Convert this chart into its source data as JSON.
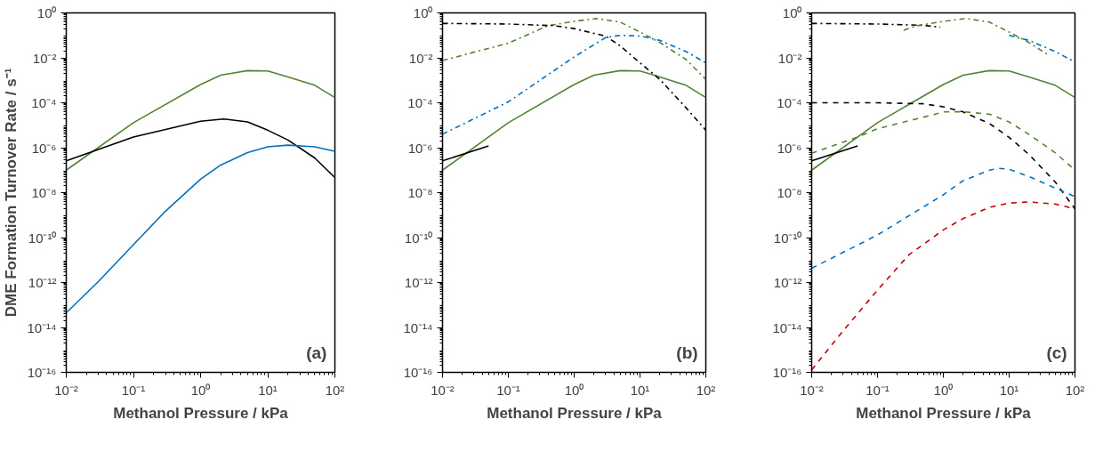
{
  "chart_data": [
    {
      "type": "line",
      "xlabel": "Methanol Pressure / kPa",
      "ylabel": "DME Formation Turnover Rate / s⁻¹",
      "annotations": [
        "(a)"
      ],
      "log": "xy",
      "grid": false,
      "xlim": [
        0.01,
        100
      ],
      "ylim": [
        1e-16,
        1
      ],
      "xticks": [
        {
          "value": 0.01,
          "label": "10⁻²"
        },
        {
          "value": 0.1,
          "label": "10⁻¹"
        },
        {
          "value": 1,
          "label": "10⁰"
        },
        {
          "value": 10,
          "label": "10¹"
        },
        {
          "value": 100,
          "label": "10²"
        }
      ],
      "yticks": [
        {
          "value": 1e-16,
          "label": "10⁻¹⁶"
        },
        {
          "value": 1e-14,
          "label": "10⁻¹⁴"
        },
        {
          "value": 1e-12,
          "label": "10⁻¹²"
        },
        {
          "value": 1e-10,
          "label": "10⁻¹⁰"
        },
        {
          "value": 1e-08,
          "label": "10⁻⁸"
        },
        {
          "value": 1e-06,
          "label": "10⁻⁶"
        },
        {
          "value": 0.0001,
          "label": "10⁻⁴"
        },
        {
          "value": 0.01,
          "label": "10⁻²"
        },
        {
          "value": 1,
          "label": "10⁰"
        }
      ],
      "series": [
        {
          "color": "#548235",
          "line_style": "solid",
          "x": [
            0.01,
            0.1,
            1,
            2,
            5,
            10,
            20,
            50,
            100
          ],
          "values": [
            1e-07,
            1.3e-05,
            0.00065,
            0.0017,
            0.0027,
            0.0026,
            0.0014,
            0.0006,
            0.00017
          ]
        },
        {
          "color": "#000000",
          "line_style": "solid",
          "x": [
            0.01,
            0.1,
            1,
            2.2,
            5,
            10,
            20,
            50,
            100
          ],
          "values": [
            2.6e-07,
            3e-06,
            1.5e-05,
            1.9e-05,
            1.4e-05,
            6e-06,
            2.2e-06,
            3.5e-07,
            4.7e-08
          ]
        },
        {
          "color": "#0070c0",
          "line_style": "solid",
          "x": [
            0.01,
            0.03,
            0.1,
            0.3,
            1,
            2,
            5,
            10,
            20,
            50,
            100
          ],
          "values": [
            4.5e-14,
            1.1e-12,
            4.8e-11,
            1.5e-09,
            4e-08,
            1.7e-07,
            6e-07,
            1.1e-06,
            1.3e-06,
            1.1e-06,
            7e-07
          ]
        }
      ]
    },
    {
      "type": "line",
      "xlabel": "Methanol Pressure / kPa",
      "annotations": [
        "(b)"
      ],
      "log": "xy",
      "grid": false,
      "xlim": [
        0.01,
        100
      ],
      "ylim": [
        1e-16,
        1
      ],
      "xticks": [
        {
          "value": 0.01,
          "label": "10⁻²"
        },
        {
          "value": 0.1,
          "label": "10⁻¹"
        },
        {
          "value": 1,
          "label": "10⁰"
        },
        {
          "value": 10,
          "label": "10¹"
        },
        {
          "value": 100,
          "label": "10²"
        }
      ],
      "yticks": [
        {
          "value": 1e-16,
          "label": "10⁻¹⁶"
        },
        {
          "value": 1e-14,
          "label": "10⁻¹⁴"
        },
        {
          "value": 1e-12,
          "label": "10⁻¹²"
        },
        {
          "value": 1e-10,
          "label": "10⁻¹⁰"
        },
        {
          "value": 1e-08,
          "label": "10⁻⁸"
        },
        {
          "value": 1e-06,
          "label": "10⁻⁶"
        },
        {
          "value": 0.0001,
          "label": "10⁻⁴"
        },
        {
          "value": 0.01,
          "label": "10⁻²"
        },
        {
          "value": 1,
          "label": "10⁰"
        }
      ],
      "series": [
        {
          "color": "#548235",
          "line_style": "solid",
          "x": [
            0.01,
            0.1,
            1,
            2,
            5,
            10,
            20,
            50,
            100
          ],
          "values": [
            1e-07,
            1.3e-05,
            0.00065,
            0.0017,
            0.0027,
            0.0026,
            0.0014,
            0.0006,
            0.00017
          ]
        },
        {
          "color": "#000000",
          "line_style": "solid",
          "x": [
            0.01,
            0.05
          ],
          "values": [
            2.6e-07,
            1.2e-06
          ]
        },
        {
          "color": "#548235",
          "line_style": "dashdot",
          "x": [
            0.01,
            0.1,
            0.4,
            1,
            2.2,
            5,
            10,
            20,
            50,
            100
          ],
          "values": [
            0.0076,
            0.045,
            0.27,
            0.42,
            0.56,
            0.39,
            0.14,
            0.048,
            0.0085,
            0.0011
          ]
        },
        {
          "color": "#0070c0",
          "line_style": "dashdot",
          "x": [
            0.01,
            0.1,
            1,
            3,
            5,
            10,
            20,
            50,
            100
          ],
          "values": [
            4e-06,
            0.00011,
            0.011,
            0.08,
            0.1,
            0.093,
            0.06,
            0.019,
            0.006
          ]
        },
        {
          "color": "#000000",
          "line_style": "dashdot",
          "x": [
            0.01,
            0.1,
            0.5,
            1,
            3,
            5,
            10,
            20,
            50,
            100
          ],
          "values": [
            0.34,
            0.32,
            0.27,
            0.2,
            0.093,
            0.034,
            0.006,
            0.0011,
            6e-05,
            6e-06
          ]
        }
      ]
    },
    {
      "type": "line",
      "xlabel": "Methanol Pressure / kPa",
      "annotations": [
        "(c)"
      ],
      "log": "xy",
      "grid": false,
      "xlim": [
        0.01,
        100
      ],
      "ylim": [
        1e-16,
        1
      ],
      "xticks": [
        {
          "value": 0.01,
          "label": "10⁻²"
        },
        {
          "value": 0.1,
          "label": "10⁻¹"
        },
        {
          "value": 1,
          "label": "10⁰"
        },
        {
          "value": 10,
          "label": "10¹"
        },
        {
          "value": 100,
          "label": "10²"
        }
      ],
      "yticks": [
        {
          "value": 1e-16,
          "label": "10⁻¹⁶"
        },
        {
          "value": 1e-14,
          "label": "10⁻¹⁴"
        },
        {
          "value": 1e-12,
          "label": "10⁻¹²"
        },
        {
          "value": 1e-10,
          "label": "10⁻¹⁰"
        },
        {
          "value": 1e-08,
          "label": "10⁻⁸"
        },
        {
          "value": 1e-06,
          "label": "10⁻⁶"
        },
        {
          "value": 0.0001,
          "label": "10⁻⁴"
        },
        {
          "value": 0.01,
          "label": "10⁻²"
        },
        {
          "value": 1,
          "label": "10⁰"
        }
      ],
      "series": [
        {
          "color": "#000000",
          "line_style": "dashdot",
          "x": [
            0.01,
            0.1,
            0.5,
            0.9
          ],
          "values": [
            0.34,
            0.32,
            0.28,
            0.23
          ]
        },
        {
          "color": "#548235",
          "line_style": "dashdot",
          "x": [
            0.25,
            0.4,
            1,
            2.2,
            5,
            10,
            20,
            40
          ],
          "values": [
            0.17,
            0.27,
            0.42,
            0.56,
            0.39,
            0.14,
            0.048,
            0.013
          ]
        },
        {
          "color": "#0070c0",
          "line_style": "dashdot",
          "x": [
            10,
            20,
            50,
            100
          ],
          "values": [
            0.1,
            0.06,
            0.019,
            0.0065
          ]
        },
        {
          "color": "#548235",
          "line_style": "solid",
          "x": [
            0.01,
            0.1,
            1,
            2,
            5,
            10,
            20,
            50,
            100
          ],
          "values": [
            1e-07,
            1.3e-05,
            0.00065,
            0.0017,
            0.0027,
            0.0026,
            0.0014,
            0.0006,
            0.00017
          ]
        },
        {
          "color": "#000000",
          "line_style": "solid",
          "x": [
            0.01,
            0.05
          ],
          "values": [
            2.6e-07,
            1.2e-06
          ]
        },
        {
          "color": "#000000",
          "line_style": "dashed",
          "x": [
            0.01,
            0.1,
            0.5,
            1,
            2,
            5,
            10,
            20,
            50,
            100
          ],
          "values": [
            0.0001,
            0.0001,
            9e-05,
            6.6e-05,
            3.9e-05,
            1.2e-05,
            2.9e-06,
            5e-07,
            3e-08,
            1.9e-09
          ]
        },
        {
          "color": "#548235",
          "line_style": "dashed",
          "x": [
            0.01,
            0.05,
            0.1,
            0.5,
            1,
            2,
            5,
            10,
            20,
            50,
            100
          ],
          "values": [
            5.7e-07,
            3e-06,
            7e-06,
            2.3e-05,
            3.9e-05,
            4e-05,
            3.1e-05,
            1.4e-05,
            3.9e-06,
            6e-07,
            1e-07
          ]
        },
        {
          "color": "#0070c0",
          "line_style": "dashed",
          "x": [
            0.01,
            0.1,
            1,
            2,
            5,
            7,
            10,
            20,
            50,
            100
          ],
          "values": [
            4.3e-12,
            1.3e-10,
            8e-09,
            3.4e-08,
            1e-07,
            1.2e-07,
            1.1e-07,
            5.2e-08,
            1.6e-08,
            6.6e-09
          ]
        },
        {
          "color": "#c00000",
          "line_style": "dashed",
          "x": [
            0.01,
            0.03,
            0.1,
            0.3,
            1,
            2,
            5,
            10,
            20,
            50,
            100
          ],
          "values": [
            1.3e-16,
            7e-15,
            4.6e-13,
            1.7e-11,
            2.2e-10,
            7e-10,
            2.2e-09,
            3.4e-09,
            3.9e-09,
            3.1e-09,
            1.9e-09
          ]
        }
      ]
    }
  ]
}
